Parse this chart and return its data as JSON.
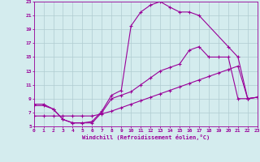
{
  "xlabel": "Windchill (Refroidissement éolien,°C)",
  "bg_color": "#d4ecee",
  "grid_color": "#b0ccd0",
  "line_color": "#990099",
  "xlim": [
    0,
    23
  ],
  "ylim": [
    5,
    23
  ],
  "xticks": [
    0,
    1,
    2,
    3,
    4,
    5,
    6,
    7,
    8,
    9,
    10,
    11,
    12,
    13,
    14,
    15,
    16,
    17,
    18,
    19,
    20,
    21,
    22,
    23
  ],
  "yticks": [
    5,
    7,
    9,
    11,
    13,
    15,
    17,
    19,
    21,
    23
  ],
  "line1_x": [
    0,
    1,
    2,
    3,
    4,
    5,
    6,
    7,
    8,
    9,
    10,
    11,
    12,
    13,
    14,
    15,
    16,
    17,
    20,
    21,
    22,
    23
  ],
  "line1_y": [
    8.2,
    8.2,
    7.5,
    6.0,
    5.5,
    5.5,
    5.7,
    7.2,
    9.5,
    10.2,
    19.5,
    21.5,
    22.5,
    23.0,
    22.2,
    21.5,
    21.5,
    21.0,
    16.5,
    15.0,
    9.0,
    9.2
  ],
  "line2_x": [
    0,
    1,
    2,
    3,
    4,
    5,
    6,
    7,
    8,
    9,
    10,
    11,
    12,
    13,
    14,
    15,
    16,
    17,
    18,
    19,
    20,
    21,
    22,
    23
  ],
  "line2_y": [
    8.0,
    8.0,
    7.5,
    6.0,
    5.5,
    5.5,
    5.5,
    7.0,
    9.0,
    9.5,
    10.0,
    11.0,
    12.0,
    13.0,
    13.5,
    14.0,
    16.0,
    16.5,
    15.0,
    15.0,
    15.0,
    9.0,
    9.0,
    9.2
  ],
  "line3_x": [
    0,
    1,
    2,
    3,
    4,
    5,
    6,
    7,
    8,
    9,
    10,
    11,
    12,
    13,
    14,
    15,
    16,
    17,
    18,
    19,
    20,
    21,
    22,
    23
  ],
  "line3_y": [
    6.5,
    6.5,
    6.5,
    6.5,
    6.5,
    6.5,
    6.5,
    6.8,
    7.2,
    7.7,
    8.2,
    8.7,
    9.2,
    9.7,
    10.2,
    10.7,
    11.2,
    11.7,
    12.2,
    12.7,
    13.2,
    13.7,
    9.0,
    9.2
  ]
}
